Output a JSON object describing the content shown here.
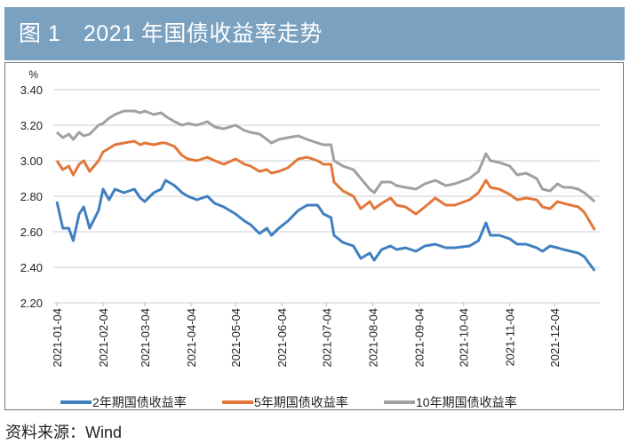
{
  "header": {
    "title": "图 1　2021 年国债收益率走势"
  },
  "source": "资料来源：Wind",
  "colors": {
    "header_bg": "#7ba1c0",
    "s2y": "#3f7fc0",
    "s5y": "#e2773a",
    "s10y": "#a0a0a0"
  },
  "chart_data": {
    "type": "line",
    "title": "2021 年国债收益率走势",
    "ylabel": "%",
    "ylim": [
      2.2,
      3.4
    ],
    "yticks": [
      "3.40",
      "3.20",
      "3.00",
      "2.80",
      "2.60",
      "2.40",
      "2.20"
    ],
    "xticks": [
      "2021-01-04",
      "2021-02-04",
      "2021-03-04",
      "2021-04-04",
      "2021-05-04",
      "2021-06-04",
      "2021-07-04",
      "2021-08-04",
      "2021-09-04",
      "2021-10-04",
      "2021-11-04",
      "2021-12-04"
    ],
    "grid": "horizontal",
    "legend": "bottom",
    "x": [
      "2021-01-04",
      "2021-01-08",
      "2021-01-12",
      "2021-01-15",
      "2021-01-19",
      "2021-01-22",
      "2021-01-26",
      "2021-02-01",
      "2021-02-04",
      "2021-02-08",
      "2021-02-12",
      "2021-02-18",
      "2021-02-25",
      "2021-03-01",
      "2021-03-04",
      "2021-03-10",
      "2021-03-15",
      "2021-03-18",
      "2021-03-24",
      "2021-03-29",
      "2021-04-02",
      "2021-04-08",
      "2021-04-15",
      "2021-04-20",
      "2021-04-26",
      "2021-05-04",
      "2021-05-10",
      "2021-05-14",
      "2021-05-20",
      "2021-05-25",
      "2021-05-28",
      "2021-06-02",
      "2021-06-08",
      "2021-06-15",
      "2021-06-21",
      "2021-06-28",
      "2021-07-02",
      "2021-07-07",
      "2021-07-09",
      "2021-07-15",
      "2021-07-22",
      "2021-07-27",
      "2021-08-02",
      "2021-08-05",
      "2021-08-10",
      "2021-08-16",
      "2021-08-20",
      "2021-08-26",
      "2021-09-02",
      "2021-09-08",
      "2021-09-15",
      "2021-09-22",
      "2021-09-28",
      "2021-10-08",
      "2021-10-14",
      "2021-10-19",
      "2021-10-22",
      "2021-10-28",
      "2021-11-04",
      "2021-11-09",
      "2021-11-15",
      "2021-11-22",
      "2021-11-26",
      "2021-12-01",
      "2021-12-06",
      "2021-12-10",
      "2021-12-15",
      "2021-12-20",
      "2021-12-24",
      "2021-12-31"
    ],
    "series": [
      {
        "name": "2年期国债收益率",
        "values": [
          2.77,
          2.62,
          2.62,
          2.55,
          2.7,
          2.74,
          2.62,
          2.72,
          2.84,
          2.78,
          2.84,
          2.82,
          2.84,
          2.79,
          2.77,
          2.82,
          2.84,
          2.89,
          2.86,
          2.82,
          2.8,
          2.78,
          2.8,
          2.76,
          2.74,
          2.7,
          2.66,
          2.64,
          2.59,
          2.62,
          2.58,
          2.62,
          2.66,
          2.72,
          2.75,
          2.75,
          2.7,
          2.68,
          2.58,
          2.54,
          2.52,
          2.45,
          2.48,
          2.44,
          2.5,
          2.52,
          2.5,
          2.51,
          2.49,
          2.52,
          2.53,
          2.51,
          2.51,
          2.52,
          2.55,
          2.65,
          2.58,
          2.58,
          2.56,
          2.53,
          2.53,
          2.51,
          2.49,
          2.52,
          2.51,
          2.5,
          2.49,
          2.48,
          2.46,
          2.38
        ]
      },
      {
        "name": "5年期国债收益率",
        "values": [
          3.0,
          2.95,
          2.97,
          2.92,
          2.98,
          3.0,
          2.94,
          3.0,
          3.05,
          3.07,
          3.09,
          3.1,
          3.11,
          3.09,
          3.1,
          3.09,
          3.1,
          3.1,
          3.08,
          3.03,
          3.01,
          3.0,
          3.02,
          3.0,
          2.98,
          3.01,
          2.98,
          2.97,
          2.94,
          2.95,
          2.93,
          2.94,
          2.96,
          3.01,
          3.02,
          3.0,
          2.98,
          2.98,
          2.88,
          2.83,
          2.8,
          2.73,
          2.77,
          2.73,
          2.76,
          2.79,
          2.75,
          2.74,
          2.7,
          2.74,
          2.79,
          2.75,
          2.75,
          2.78,
          2.82,
          2.89,
          2.85,
          2.84,
          2.81,
          2.78,
          2.79,
          2.78,
          2.74,
          2.73,
          2.77,
          2.76,
          2.75,
          2.74,
          2.71,
          2.61
        ]
      },
      {
        "name": "10年期国债收益率",
        "values": [
          3.16,
          3.13,
          3.15,
          3.12,
          3.16,
          3.14,
          3.15,
          3.2,
          3.21,
          3.24,
          3.26,
          3.28,
          3.28,
          3.27,
          3.28,
          3.26,
          3.27,
          3.25,
          3.22,
          3.2,
          3.21,
          3.2,
          3.22,
          3.19,
          3.18,
          3.2,
          3.17,
          3.16,
          3.15,
          3.12,
          3.1,
          3.12,
          3.13,
          3.14,
          3.12,
          3.1,
          3.09,
          3.09,
          3.0,
          2.97,
          2.95,
          2.9,
          2.84,
          2.82,
          2.88,
          2.88,
          2.86,
          2.85,
          2.84,
          2.87,
          2.89,
          2.86,
          2.87,
          2.9,
          2.94,
          3.04,
          3.0,
          2.99,
          2.97,
          2.92,
          2.93,
          2.9,
          2.84,
          2.83,
          2.87,
          2.85,
          2.85,
          2.84,
          2.82,
          2.77
        ]
      }
    ]
  }
}
